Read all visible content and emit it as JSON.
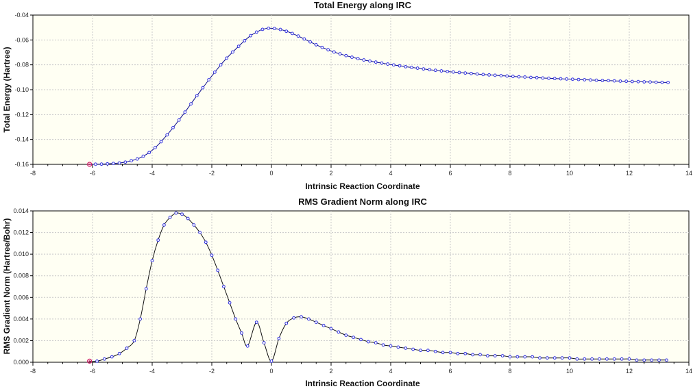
{
  "chart_data": [
    {
      "type": "line",
      "title": "Total Energy along IRC",
      "xlabel": "Intrinsic Reaction Coordinate",
      "ylabel": "Total Energy (Hartree)",
      "xlim": [
        -8,
        14
      ],
      "ylim": [
        -0.16,
        -0.04
      ],
      "xticks": [
        "-8",
        "-6",
        "-4",
        "-2",
        "0",
        "2",
        "4",
        "6",
        "8",
        "10",
        "12",
        "14"
      ],
      "yticks": [
        "-0.16",
        "-0.14",
        "-0.12",
        "-0.10",
        "-0.08",
        "-0.06",
        "-0.04"
      ],
      "grid": true,
      "colors": {
        "plot_bg": "#fffff3",
        "line": "#0a0a8c",
        "marker": "#3030e0",
        "highlight": "#d0206a",
        "grid": "#c8c8c8"
      },
      "series": [
        {
          "x": [
            -6.1,
            -5.9,
            -5.7,
            -5.5,
            -5.3,
            -5.1,
            -4.9,
            -4.7,
            -4.5,
            -4.3,
            -4.1,
            -3.9,
            -3.7,
            -3.5,
            -3.3,
            -3.1,
            -2.9,
            -2.7,
            -2.5,
            -2.3,
            -2.1,
            -1.9,
            -1.7,
            -1.5,
            -1.3,
            -1.1,
            -0.9,
            -0.7,
            -0.5,
            -0.3,
            -0.1,
            0.1,
            0.3,
            0.5,
            0.7,
            0.9,
            1.1,
            1.3,
            1.5,
            1.7,
            1.9,
            2.1,
            2.3,
            2.5,
            2.7,
            2.9,
            3.1,
            3.3,
            3.5,
            3.7,
            3.9,
            4.1,
            4.3,
            4.5,
            4.7,
            4.9,
            5.1,
            5.3,
            5.5,
            5.7,
            5.9,
            6.1,
            6.3,
            6.5,
            6.7,
            6.9,
            7.1,
            7.3,
            7.5,
            7.7,
            7.9,
            8.1,
            8.3,
            8.5,
            8.7,
            8.9,
            9.1,
            9.3,
            9.5,
            9.7,
            9.9,
            10.1,
            10.3,
            10.5,
            10.7,
            10.9,
            11.1,
            11.3,
            11.5,
            11.7,
            11.9,
            12.1,
            12.3,
            12.5,
            12.7,
            12.9,
            13.1,
            13.3
          ],
          "y": [
            -0.16,
            -0.1599,
            -0.1598,
            -0.1596,
            -0.1593,
            -0.1589,
            -0.1582,
            -0.1571,
            -0.1557,
            -0.1535,
            -0.1505,
            -0.1466,
            -0.1418,
            -0.1363,
            -0.1305,
            -0.1244,
            -0.118,
            -0.1114,
            -0.1048,
            -0.0984,
            -0.092,
            -0.0859,
            -0.08,
            -0.0746,
            -0.0697,
            -0.0651,
            -0.0606,
            -0.0566,
            -0.0537,
            -0.0515,
            -0.0506,
            -0.0508,
            -0.0516,
            -0.053,
            -0.0548,
            -0.0569,
            -0.0592,
            -0.0616,
            -0.0639,
            -0.066,
            -0.0679,
            -0.0697,
            -0.0712,
            -0.0726,
            -0.0739,
            -0.075,
            -0.0761,
            -0.077,
            -0.0778,
            -0.0786,
            -0.0794,
            -0.0801,
            -0.0808,
            -0.0815,
            -0.0821,
            -0.0827,
            -0.0833,
            -0.0839,
            -0.0844,
            -0.0849,
            -0.0854,
            -0.0858,
            -0.0862,
            -0.0866,
            -0.087,
            -0.0874,
            -0.0878,
            -0.0881,
            -0.0884,
            -0.0887,
            -0.089,
            -0.0893,
            -0.0896,
            -0.0898,
            -0.0901,
            -0.0903,
            -0.0906,
            -0.0908,
            -0.091,
            -0.0912,
            -0.0914,
            -0.0916,
            -0.0918,
            -0.092,
            -0.0922,
            -0.0924,
            -0.0926,
            -0.0927,
            -0.0929,
            -0.0931,
            -0.0932,
            -0.0934,
            -0.0935,
            -0.0937,
            -0.0938,
            -0.094,
            -0.0941,
            -0.0942
          ]
        }
      ]
    },
    {
      "type": "line",
      "title": "RMS Gradient Norm along IRC",
      "xlabel": "Intrinsic Reaction Coordinate",
      "ylabel": "RMS Gradient Norm (Hartree/Bohr)",
      "xlim": [
        -8,
        14
      ],
      "ylim": [
        0.0,
        0.014
      ],
      "xticks": [
        "-8",
        "-6",
        "-4",
        "-2",
        "0",
        "2",
        "4",
        "6",
        "8",
        "10",
        "12",
        "14"
      ],
      "yticks": [
        "0.000",
        "0.002",
        "0.004",
        "0.006",
        "0.008",
        "0.010",
        "0.012",
        "0.014"
      ],
      "grid": true,
      "colors": {
        "plot_bg": "#fffff3",
        "line": "#111111",
        "marker": "#3030e0",
        "highlight": "#d0206a",
        "grid": "#c8c8c8"
      },
      "series": [
        {
          "x": [
            -6.1,
            -5.85,
            -5.6,
            -5.35,
            -5.1,
            -4.85,
            -4.6,
            -4.4,
            -4.2,
            -4.0,
            -3.8,
            -3.6,
            -3.4,
            -3.2,
            -3.0,
            -2.8,
            -2.6,
            -2.4,
            -2.2,
            -2.0,
            -1.8,
            -1.6,
            -1.4,
            -1.2,
            -1.0,
            -0.8,
            -0.5,
            -0.25,
            0.0,
            0.25,
            0.5,
            0.75,
            1.0,
            1.25,
            1.5,
            1.75,
            2.0,
            2.25,
            2.5,
            2.75,
            3.0,
            3.25,
            3.5,
            3.75,
            4.0,
            4.25,
            4.5,
            4.75,
            5.0,
            5.25,
            5.5,
            5.75,
            6.0,
            6.25,
            6.5,
            6.75,
            7.0,
            7.25,
            7.5,
            7.75,
            8.0,
            8.25,
            8.5,
            8.75,
            9.0,
            9.25,
            9.5,
            9.75,
            10.0,
            10.25,
            10.5,
            10.75,
            11.0,
            11.25,
            11.5,
            11.75,
            12.0,
            12.25,
            12.5,
            12.75,
            13.0,
            13.25
          ],
          "y": [
            0.0001,
            0.0001,
            0.0003,
            0.0005,
            0.0008,
            0.0013,
            0.002,
            0.004,
            0.0068,
            0.0094,
            0.0113,
            0.0127,
            0.0134,
            0.0138,
            0.0137,
            0.0133,
            0.0127,
            0.012,
            0.0111,
            0.0099,
            0.0085,
            0.007,
            0.0055,
            0.004,
            0.0027,
            0.0015,
            0.0037,
            0.0018,
            0.0001,
            0.0022,
            0.0036,
            0.0041,
            0.0042,
            0.004,
            0.0037,
            0.0034,
            0.0031,
            0.0028,
            0.0025,
            0.0023,
            0.0021,
            0.0019,
            0.0018,
            0.0016,
            0.0015,
            0.0014,
            0.0013,
            0.0012,
            0.0011,
            0.0011,
            0.001,
            0.0009,
            0.0009,
            0.0008,
            0.0008,
            0.0007,
            0.0007,
            0.0006,
            0.0006,
            0.0006,
            0.0005,
            0.0005,
            0.0005,
            0.0005,
            0.0004,
            0.0004,
            0.0004,
            0.0004,
            0.0004,
            0.0003,
            0.0003,
            0.0003,
            0.0003,
            0.0003,
            0.0003,
            0.0003,
            0.0003,
            0.0002,
            0.0002,
            0.0002,
            0.0002,
            0.0002
          ]
        }
      ]
    }
  ]
}
